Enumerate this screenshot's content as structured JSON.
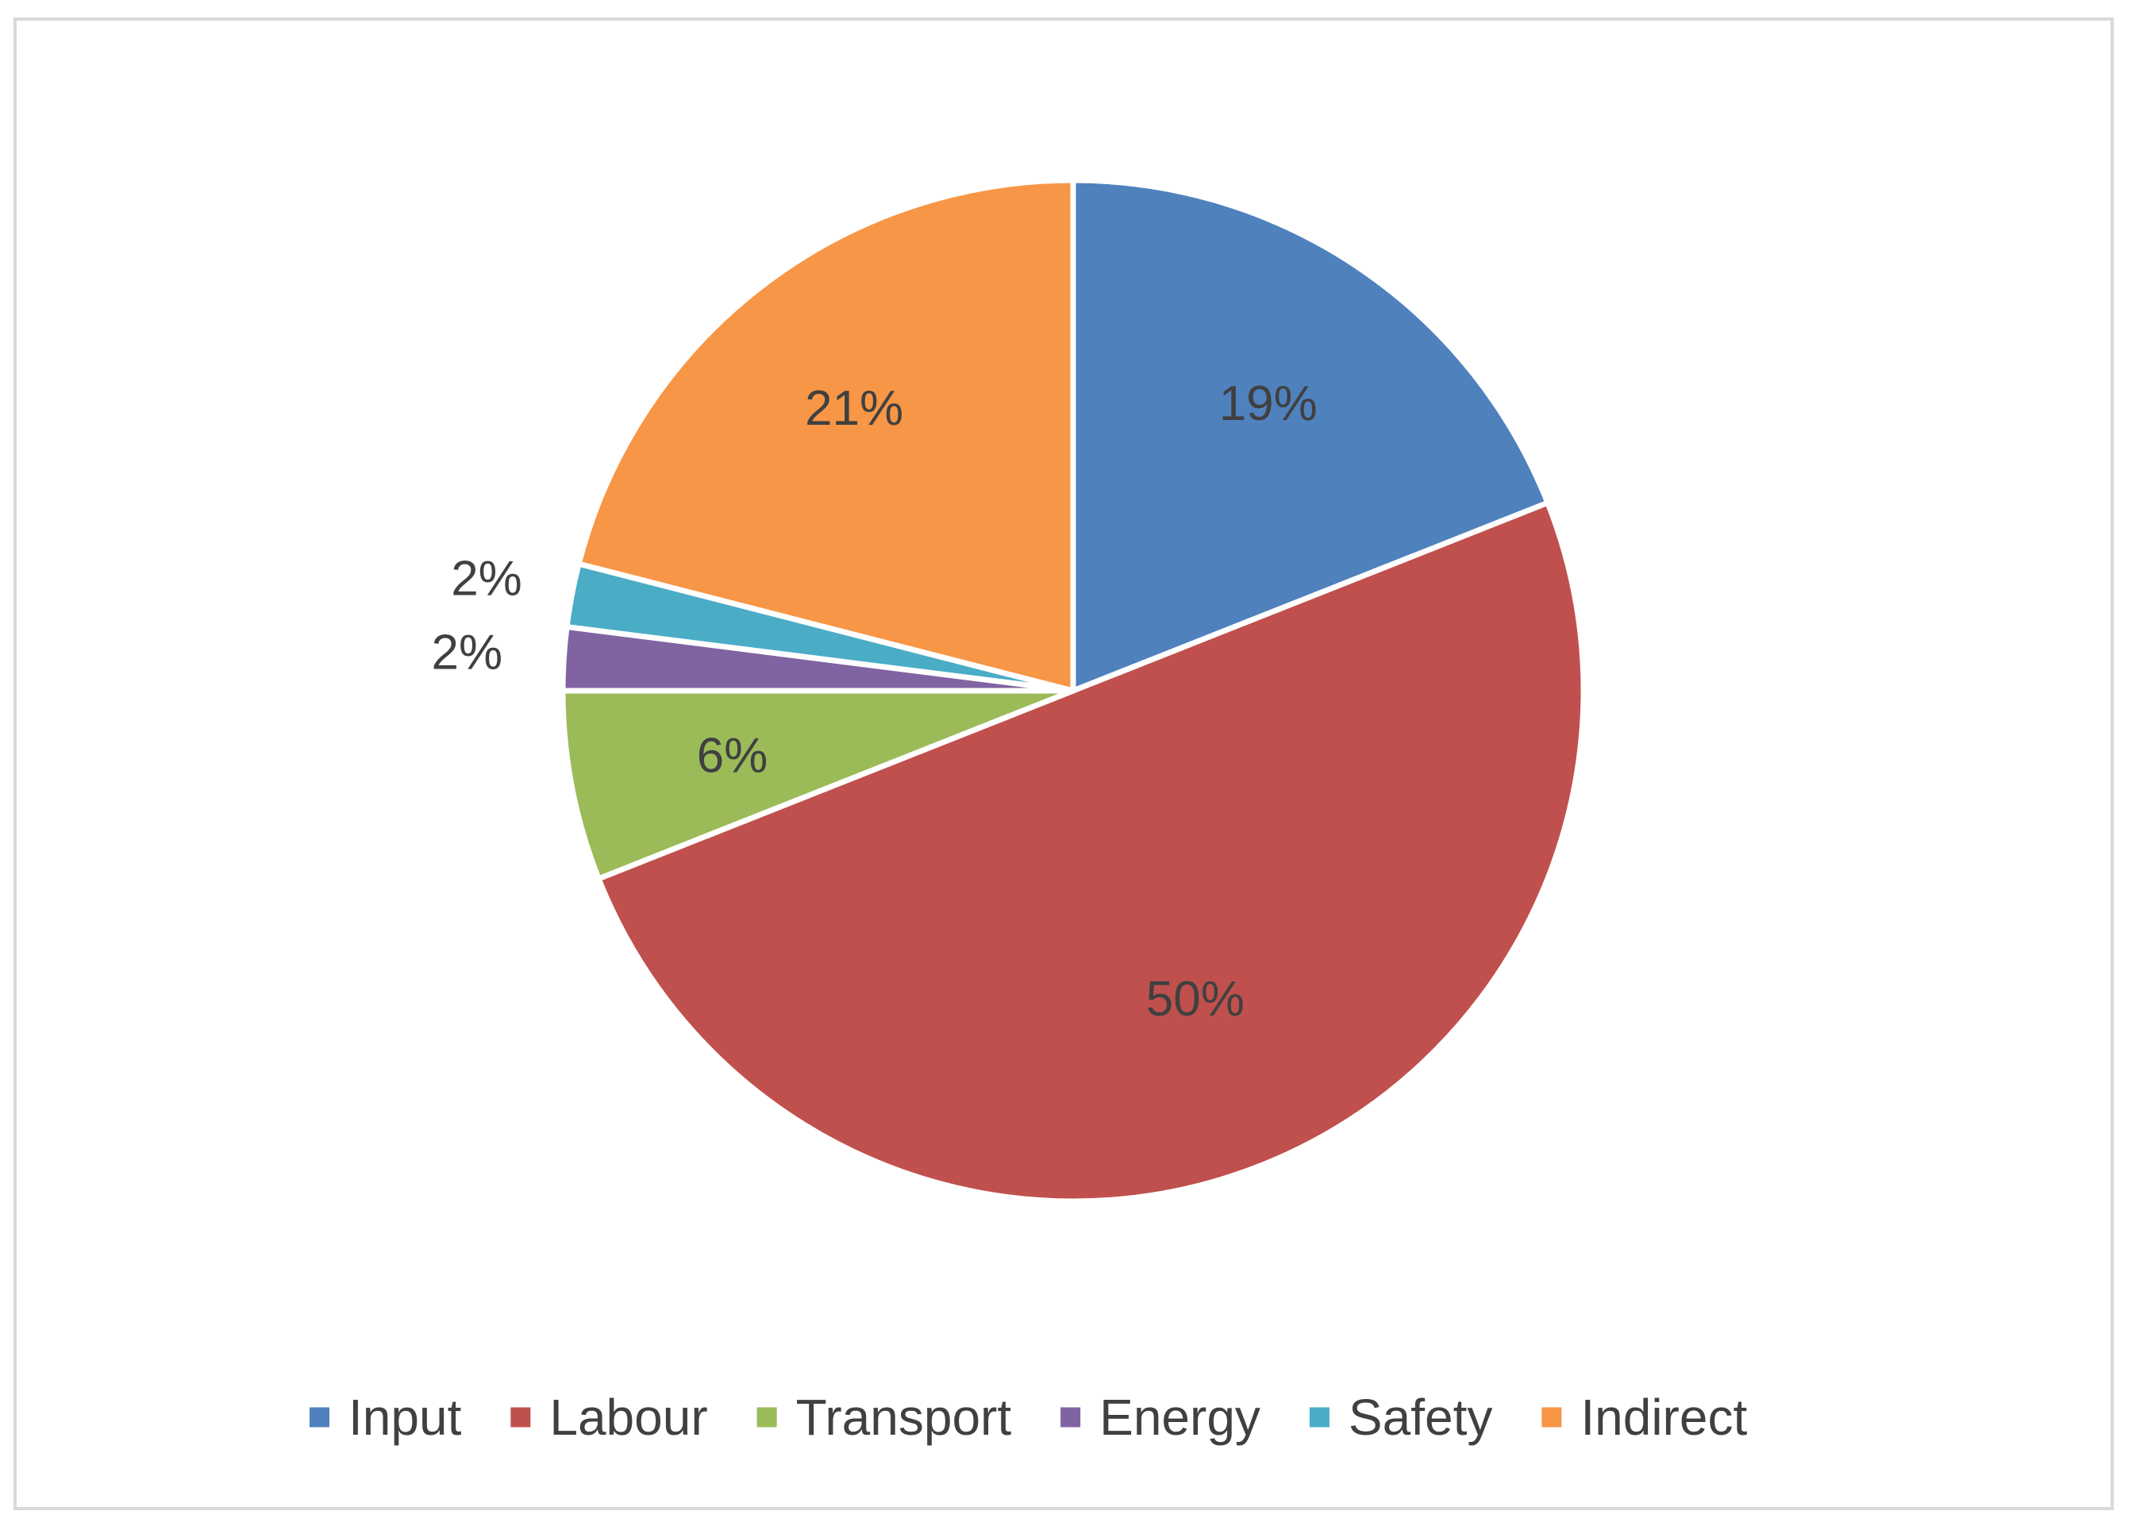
{
  "chart_data": {
    "type": "pie",
    "title": "",
    "slices": [
      {
        "label": "Input",
        "value": 19,
        "display": "19%",
        "color": "#4f81bd"
      },
      {
        "label": "Labour",
        "value": 50,
        "display": "50%",
        "color": "#c0504d"
      },
      {
        "label": "Transport",
        "value": 6,
        "display": "6%",
        "color": "#9bbb59"
      },
      {
        "label": "Energy",
        "value": 2,
        "display": "2%",
        "color": "#8064a2"
      },
      {
        "label": "Safety",
        "value": 2,
        "display": "2%",
        "color": "#4bacc6"
      },
      {
        "label": "Indirect",
        "value": 21,
        "display": "21%",
        "color": "#f79646"
      }
    ],
    "legend_position": "bottom",
    "start_angle": "12 o'clock",
    "direction": "clockwise"
  }
}
